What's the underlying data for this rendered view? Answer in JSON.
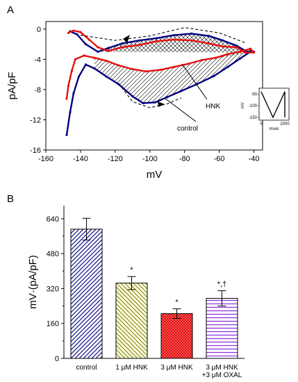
{
  "chart_data": [
    {
      "panel": "A",
      "type": "line",
      "xlabel": "mV",
      "ylabel": "pA/pF",
      "xlim": [
        -160,
        -35
      ],
      "ylim": [
        -16,
        1
      ],
      "x_ticks": [
        -160,
        -140,
        -120,
        -100,
        -80,
        -60,
        -40
      ],
      "y_ticks": [
        0,
        -4,
        -8,
        -12,
        -16
      ],
      "series": [
        {
          "name": "control",
          "color": "#000080",
          "points": [
            [
              -148,
              -14
            ],
            [
              -146,
              -11
            ],
            [
              -144,
              -8.5
            ],
            [
              -141,
              -6.3
            ],
            [
              -137,
              -4.7
            ],
            [
              -132,
              -5.2
            ],
            [
              -125,
              -6.3
            ],
            [
              -118,
              -7.3
            ],
            [
              -110,
              -8.9
            ],
            [
              -104,
              -9.8
            ],
            [
              -97,
              -9.7
            ],
            [
              -90,
              -9.0
            ],
            [
              -82,
              -8.2
            ],
            [
              -73,
              -7.3
            ],
            [
              -63,
              -6.2
            ],
            [
              -55,
              -5.0
            ],
            [
              -48,
              -3.9
            ],
            [
              -42,
              -3.0
            ],
            [
              -40,
              -3.0
            ],
            [
              -44,
              -3.0
            ],
            [
              -50,
              -2.2
            ],
            [
              -58,
              -1.5
            ],
            [
              -66,
              -0.9
            ],
            [
              -76,
              -0.6
            ],
            [
              -86,
              -0.8
            ],
            [
              -96,
              -1.2
            ],
            [
              -106,
              -1.5
            ],
            [
              -116,
              -1.9
            ],
            [
              -124,
              -2.5
            ],
            [
              -130,
              -3.0
            ],
            [
              -137,
              -2.0
            ],
            [
              -142,
              -0.7
            ],
            [
              -146,
              -0.3
            ]
          ]
        },
        {
          "name": "HNK",
          "color": "#e41010",
          "points": [
            [
              -148,
              -9.2
            ],
            [
              -147,
              -7.5
            ],
            [
              -145,
              -5.5
            ],
            [
              -143,
              -4.0
            ],
            [
              -138,
              -3.5
            ],
            [
              -132,
              -3.8
            ],
            [
              -125,
              -4.2
            ],
            [
              -118,
              -4.8
            ],
            [
              -110,
              -5.3
            ],
            [
              -102,
              -5.6
            ],
            [
              -94,
              -5.4
            ],
            [
              -86,
              -5.0
            ],
            [
              -78,
              -4.6
            ],
            [
              -70,
              -4.1
            ],
            [
              -62,
              -3.8
            ],
            [
              -55,
              -3.3
            ],
            [
              -48,
              -3.0
            ],
            [
              -42,
              -2.6
            ],
            [
              -40,
              -3.1
            ],
            [
              -45,
              -3.1
            ],
            [
              -50,
              -2.4
            ],
            [
              -58,
              -2.3
            ],
            [
              -66,
              -1.9
            ],
            [
              -76,
              -1.5
            ],
            [
              -86,
              -1.4
            ],
            [
              -96,
              -1.6
            ],
            [
              -106,
              -2.1
            ],
            [
              -116,
              -2.4
            ],
            [
              -124,
              -2.9
            ],
            [
              -130,
              -2.4
            ],
            [
              -135,
              -1.4
            ],
            [
              -140,
              -0.4
            ],
            [
              -144,
              -0.2
            ],
            [
              -147,
              -0.5
            ]
          ]
        }
      ],
      "annotations": [
        {
          "text": "HNK",
          "target": "HNK"
        },
        {
          "text": "control",
          "target": "control"
        }
      ],
      "inset": {
        "type": "line",
        "description": "voltage protocol",
        "xlabel": "msec",
        "ylabel": "mV",
        "x_ticks": [
          0,
          2000
        ],
        "y_ticks": [
          -50,
          -100,
          -150
        ],
        "points": [
          [
            0,
            -40
          ],
          [
            1000,
            -150
          ],
          [
            2000,
            -40
          ],
          [
            2000,
            -150
          ]
        ]
      }
    },
    {
      "panel": "B",
      "type": "bar",
      "ylabel": "mV·(pA/pF)",
      "ylim": [
        0,
        700
      ],
      "y_ticks": [
        0,
        160,
        320,
        480,
        640
      ],
      "categories": [
        "control",
        "1 μM HNK",
        "3 μM HNK",
        "3 μM HNK\n+3 μM OXAL"
      ],
      "category_lines": [
        [
          "control"
        ],
        [
          "1 μM HNK"
        ],
        [
          "3 μM HNK"
        ],
        [
          "3 μM HNK",
          "+3 μM OXAL"
        ]
      ],
      "values": [
        592,
        345,
        205,
        275
      ],
      "errors": [
        50,
        30,
        22,
        35
      ],
      "markers": [
        "",
        "*",
        "*",
        "*,†"
      ],
      "colors": [
        "#1a1a8c",
        "#b7b740",
        "#e41010",
        "#8a2be2"
      ],
      "fills": [
        "#ffffff",
        "#ffffe0",
        "#ff5050",
        "#ffffff"
      ]
    }
  ]
}
